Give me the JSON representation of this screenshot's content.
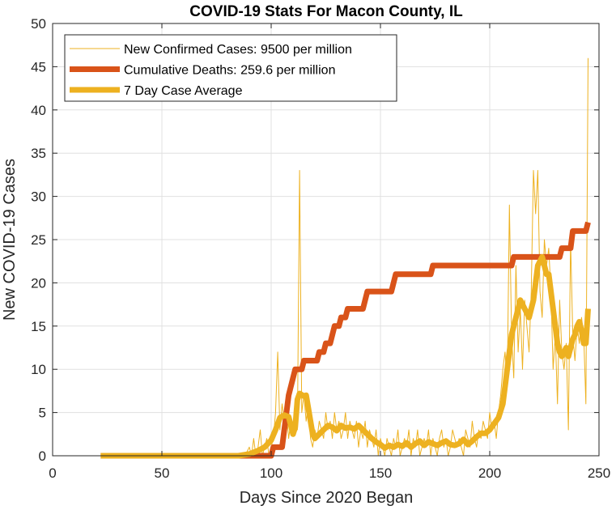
{
  "chart_data": {
    "type": "line",
    "title": "COVID-19 Stats For Macon County, IL",
    "xlabel": "Days Since 2020 Began",
    "ylabel": "New COVID-19 Cases",
    "xlim": [
      0,
      250
    ],
    "ylim": [
      0,
      50
    ],
    "xticks": [
      0,
      50,
      100,
      150,
      200,
      250
    ],
    "yticks": [
      0,
      5,
      10,
      15,
      20,
      25,
      30,
      35,
      40,
      45,
      50
    ],
    "grid": true,
    "legend_position": "top-left",
    "series": [
      {
        "name": "New Confirmed Cases: 9500 per million",
        "color": "#EDB120",
        "style": "thin",
        "points": [
          [
            22,
            0
          ],
          [
            40,
            0
          ],
          [
            60,
            0
          ],
          [
            80,
            0
          ],
          [
            88,
            0
          ],
          [
            90,
            1
          ],
          [
            91,
            0
          ],
          [
            92,
            2
          ],
          [
            93,
            0
          ],
          [
            94,
            1
          ],
          [
            95,
            3
          ],
          [
            96,
            0
          ],
          [
            97,
            1
          ],
          [
            98,
            2
          ],
          [
            99,
            0
          ],
          [
            100,
            1
          ],
          [
            101,
            2
          ],
          [
            102,
            5
          ],
          [
            103,
            12
          ],
          [
            104,
            3
          ],
          [
            105,
            6
          ],
          [
            106,
            4
          ],
          [
            107,
            5
          ],
          [
            108,
            2
          ],
          [
            109,
            4
          ],
          [
            110,
            3
          ],
          [
            111,
            6
          ],
          [
            112,
            3
          ],
          [
            113,
            33
          ],
          [
            114,
            5
          ],
          [
            115,
            7
          ],
          [
            116,
            4
          ],
          [
            117,
            6
          ],
          [
            118,
            2
          ],
          [
            119,
            1
          ],
          [
            120,
            3
          ],
          [
            121,
            2
          ],
          [
            122,
            4
          ],
          [
            123,
            3
          ],
          [
            124,
            2
          ],
          [
            125,
            5
          ],
          [
            126,
            3
          ],
          [
            127,
            4
          ],
          [
            128,
            2
          ],
          [
            129,
            5
          ],
          [
            130,
            3
          ],
          [
            131,
            4
          ],
          [
            132,
            2
          ],
          [
            133,
            3
          ],
          [
            134,
            5
          ],
          [
            135,
            2
          ],
          [
            136,
            4
          ],
          [
            137,
            3
          ],
          [
            138,
            2
          ],
          [
            139,
            4
          ],
          [
            140,
            1
          ],
          [
            141,
            3
          ],
          [
            142,
            2
          ],
          [
            143,
            4
          ],
          [
            144,
            1
          ],
          [
            145,
            3
          ],
          [
            146,
            2
          ],
          [
            147,
            1
          ],
          [
            148,
            3
          ],
          [
            149,
            0
          ],
          [
            150,
            2
          ],
          [
            151,
            1
          ],
          [
            152,
            0
          ],
          [
            153,
            2
          ],
          [
            154,
            1
          ],
          [
            155,
            0
          ],
          [
            156,
            2
          ],
          [
            157,
            1
          ],
          [
            158,
            3
          ],
          [
            159,
            0
          ],
          [
            160,
            1
          ],
          [
            161,
            2
          ],
          [
            162,
            1
          ],
          [
            163,
            3
          ],
          [
            164,
            0
          ],
          [
            165,
            2
          ],
          [
            166,
            1
          ],
          [
            167,
            3
          ],
          [
            168,
            0
          ],
          [
            169,
            1
          ],
          [
            170,
            2
          ],
          [
            171,
            1
          ],
          [
            172,
            3
          ],
          [
            173,
            0
          ],
          [
            174,
            2
          ],
          [
            175,
            1
          ],
          [
            176,
            0
          ],
          [
            177,
            2
          ],
          [
            178,
            3
          ],
          [
            179,
            1
          ],
          [
            180,
            2
          ],
          [
            181,
            0
          ],
          [
            182,
            1
          ],
          [
            183,
            3
          ],
          [
            184,
            2
          ],
          [
            185,
            1
          ],
          [
            186,
            2
          ],
          [
            187,
            1
          ],
          [
            188,
            0
          ],
          [
            189,
            3
          ],
          [
            190,
            2
          ],
          [
            191,
            1
          ],
          [
            192,
            4
          ],
          [
            193,
            2
          ],
          [
            194,
            1
          ],
          [
            195,
            3
          ],
          [
            196,
            2
          ],
          [
            197,
            4
          ],
          [
            198,
            3
          ],
          [
            199,
            2
          ],
          [
            200,
            5
          ],
          [
            201,
            3
          ],
          [
            202,
            4
          ],
          [
            203,
            2
          ],
          [
            204,
            5
          ],
          [
            205,
            7
          ],
          [
            206,
            10
          ],
          [
            207,
            12
          ],
          [
            208,
            8
          ],
          [
            209,
            29
          ],
          [
            210,
            14
          ],
          [
            211,
            9
          ],
          [
            212,
            22
          ],
          [
            213,
            12
          ],
          [
            214,
            17
          ],
          [
            215,
            10
          ],
          [
            216,
            18
          ],
          [
            217,
            15
          ],
          [
            218,
            12
          ],
          [
            219,
            19
          ],
          [
            220,
            33
          ],
          [
            221,
            28
          ],
          [
            222,
            33
          ],
          [
            223,
            19
          ],
          [
            224,
            16
          ],
          [
            225,
            25
          ],
          [
            226,
            22
          ],
          [
            227,
            24
          ],
          [
            228,
            19
          ],
          [
            229,
            10
          ],
          [
            230,
            14
          ],
          [
            231,
            6
          ],
          [
            232,
            18
          ],
          [
            233,
            12
          ],
          [
            234,
            10
          ],
          [
            235,
            13
          ],
          [
            236,
            3
          ],
          [
            237,
            25
          ],
          [
            238,
            14
          ],
          [
            239,
            11
          ],
          [
            240,
            15
          ],
          [
            241,
            13
          ],
          [
            242,
            16
          ],
          [
            243,
            14
          ],
          [
            244,
            6
          ],
          [
            245,
            46
          ]
        ]
      },
      {
        "name": "Cumulative Deaths: 259.6 per million",
        "color": "#D95319",
        "style": "thick",
        "points": [
          [
            22,
            0
          ],
          [
            100,
            0
          ],
          [
            101,
            1
          ],
          [
            105,
            1
          ],
          [
            106,
            3
          ],
          [
            107,
            5
          ],
          [
            108,
            7
          ],
          [
            109,
            8
          ],
          [
            110,
            9
          ],
          [
            111,
            10
          ],
          [
            114,
            10
          ],
          [
            115,
            11
          ],
          [
            121,
            11
          ],
          [
            122,
            12
          ],
          [
            124,
            12
          ],
          [
            125,
            13
          ],
          [
            127,
            13
          ],
          [
            128,
            14
          ],
          [
            129,
            15
          ],
          [
            131,
            15
          ],
          [
            132,
            16
          ],
          [
            134,
            16
          ],
          [
            135,
            17
          ],
          [
            142,
            17
          ],
          [
            143,
            18
          ],
          [
            144,
            19
          ],
          [
            155,
            19
          ],
          [
            156,
            20
          ],
          [
            157,
            21
          ],
          [
            173,
            21
          ],
          [
            174,
            22
          ],
          [
            210,
            22
          ],
          [
            211,
            23
          ],
          [
            232,
            23
          ],
          [
            233,
            24
          ],
          [
            237,
            24
          ],
          [
            238,
            26
          ],
          [
            244,
            26
          ],
          [
            245,
            27
          ]
        ]
      },
      {
        "name": "7 Day Case Average",
        "color": "#EDB120",
        "style": "medium",
        "points": [
          [
            22,
            0
          ],
          [
            85,
            0
          ],
          [
            90,
            0.2
          ],
          [
            94,
            0.6
          ],
          [
            97,
            1
          ],
          [
            100,
            1.8
          ],
          [
            102,
            3
          ],
          [
            104,
            4.4
          ],
          [
            106,
            4.7
          ],
          [
            108,
            4.5
          ],
          [
            109,
            3.5
          ],
          [
            110,
            2.5
          ],
          [
            111,
            3.3
          ],
          [
            112,
            6.5
          ],
          [
            113,
            7.2
          ],
          [
            115,
            6.9
          ],
          [
            116,
            7
          ],
          [
            117,
            5.5
          ],
          [
            118,
            4
          ],
          [
            119,
            2.5
          ],
          [
            120,
            2
          ],
          [
            122,
            2.5
          ],
          [
            124,
            3
          ],
          [
            126,
            3.5
          ],
          [
            128,
            3.3
          ],
          [
            130,
            2.9
          ],
          [
            132,
            3.5
          ],
          [
            134,
            3.2
          ],
          [
            136,
            3.3
          ],
          [
            138,
            3.1
          ],
          [
            140,
            3.5
          ],
          [
            142,
            3
          ],
          [
            144,
            2.5
          ],
          [
            146,
            2
          ],
          [
            148,
            1.6
          ],
          [
            150,
            1.3
          ],
          [
            152,
            0.9
          ],
          [
            154,
            1.2
          ],
          [
            156,
            1
          ],
          [
            158,
            1.3
          ],
          [
            160,
            1.1
          ],
          [
            162,
            1.5
          ],
          [
            164,
            1
          ],
          [
            166,
            1.4
          ],
          [
            168,
            1.7
          ],
          [
            170,
            1.2
          ],
          [
            172,
            1.6
          ],
          [
            174,
            1.4
          ],
          [
            176,
            1.2
          ],
          [
            178,
            1.5
          ],
          [
            180,
            1.7
          ],
          [
            182,
            1.3
          ],
          [
            184,
            1.2
          ],
          [
            186,
            1.4
          ],
          [
            188,
            1.9
          ],
          [
            190,
            1.3
          ],
          [
            192,
            1.7
          ],
          [
            194,
            2.2
          ],
          [
            196,
            2.6
          ],
          [
            198,
            2.6
          ],
          [
            200,
            3
          ],
          [
            202,
            3.7
          ],
          [
            204,
            4.4
          ],
          [
            206,
            6
          ],
          [
            208,
            10
          ],
          [
            210,
            14
          ],
          [
            212,
            16
          ],
          [
            214,
            18
          ],
          [
            216,
            17
          ],
          [
            218,
            16
          ],
          [
            220,
            18
          ],
          [
            222,
            22
          ],
          [
            224,
            23
          ],
          [
            226,
            21
          ],
          [
            227,
            21
          ],
          [
            228,
            19
          ],
          [
            229,
            17
          ],
          [
            230,
            15
          ],
          [
            231,
            13
          ],
          [
            232,
            12
          ],
          [
            233,
            11.5
          ],
          [
            234,
            12
          ],
          [
            235,
            12.5
          ],
          [
            236,
            11.5
          ],
          [
            237,
            12.5
          ],
          [
            238,
            13.5
          ],
          [
            239,
            14
          ],
          [
            240,
            15
          ],
          [
            241,
            15.5
          ],
          [
            242,
            14.5
          ],
          [
            243,
            13
          ],
          [
            244,
            13
          ],
          [
            245,
            17
          ]
        ]
      }
    ]
  }
}
